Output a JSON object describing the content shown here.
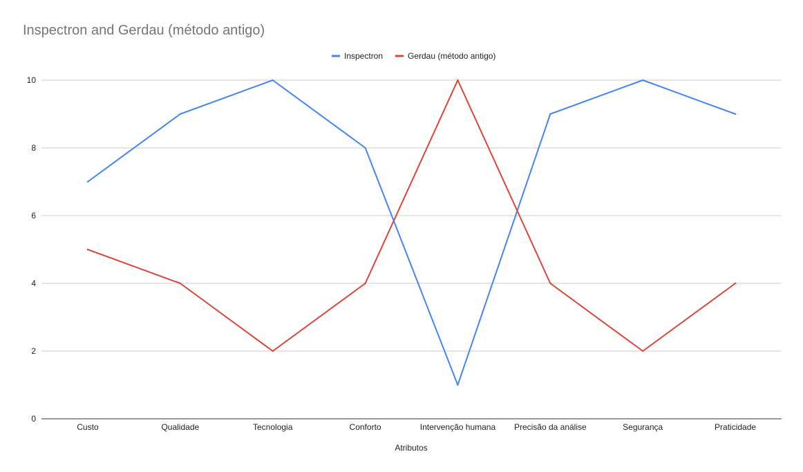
{
  "chart_data": {
    "type": "line",
    "title": "Inspectron and Gerdau (método antigo)",
    "xlabel": "Atributos",
    "ylabel": "",
    "categories": [
      "Custo",
      "Qualidade",
      "Tecnologia",
      "Conforto",
      "Intervenção humana",
      "Precisão da análise",
      "Segurança",
      "Praticidade"
    ],
    "series": [
      {
        "name": "Inspectron",
        "color": "#4285f4",
        "values": [
          7,
          9,
          10,
          8,
          1,
          9,
          10,
          9
        ]
      },
      {
        "name": "Gerdau (método antigo)",
        "color": "#db4437",
        "values": [
          5,
          4,
          2,
          4,
          10,
          4,
          2,
          4
        ]
      }
    ],
    "ylim": [
      0,
      10
    ],
    "yticks": [
      "0",
      "2",
      "4",
      "6",
      "8",
      "10"
    ],
    "grid": true,
    "legend_position": "top-center"
  }
}
